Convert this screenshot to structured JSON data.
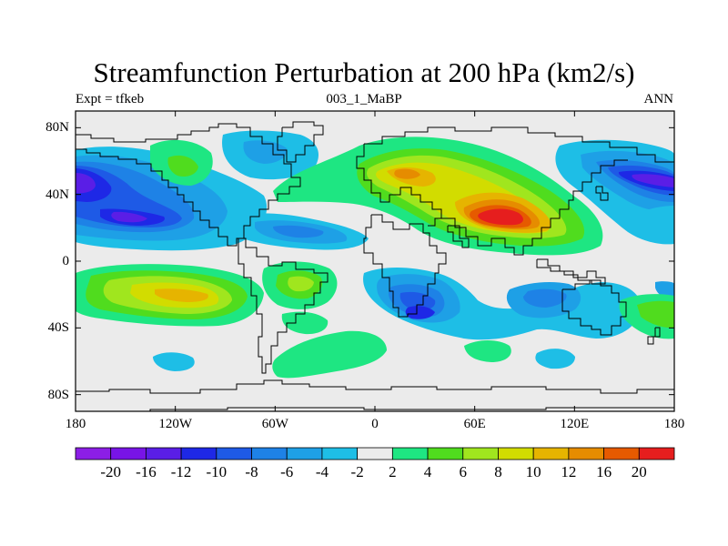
{
  "title": "Streamfunction Perturbation at 200 hPa (km2/s)",
  "subtitle_left": "Expt = tfkeb",
  "subtitle_center": "003_1_MaBP",
  "subtitle_right": "ANN",
  "map": {
    "projection": "cylindrical-equidistant",
    "lon_range": [
      -180,
      180
    ],
    "lat_range": [
      -90,
      90
    ],
    "background_color": "#ebebeb",
    "lat_ticks": [
      {
        "value": 80,
        "label": "80N"
      },
      {
        "value": 40,
        "label": "40N"
      },
      {
        "value": 0,
        "label": "0"
      },
      {
        "value": -40,
        "label": "40S"
      },
      {
        "value": -80,
        "label": "80S"
      }
    ],
    "lon_ticks": [
      {
        "value": -180,
        "label": "180"
      },
      {
        "value": -120,
        "label": "120W"
      },
      {
        "value": -60,
        "label": "60W"
      },
      {
        "value": 0,
        "label": "0"
      },
      {
        "value": 60,
        "label": "60E"
      },
      {
        "value": 120,
        "label": "120E"
      },
      {
        "value": 180,
        "label": "180"
      }
    ]
  },
  "colorbar": {
    "colors": [
      "#8c1ee6",
      "#7814e6",
      "#5a1ee6",
      "#1e28e6",
      "#1e5ae6",
      "#1e82e6",
      "#1ea0e6",
      "#1ebee6",
      "#ebebeb",
      "#1ee682",
      "#50dc1e",
      "#a0e61e",
      "#d2dc00",
      "#e6b400",
      "#e68c00",
      "#e65a00",
      "#e61e1e"
    ],
    "labels": [
      "-20",
      "-16",
      "-12",
      "-10",
      "-8",
      "-6",
      "-4",
      "-2",
      "2",
      "4",
      "6",
      "8",
      "10",
      "12",
      "16",
      "20"
    ]
  },
  "field_features": [
    {
      "lon": -165,
      "lat": 48,
      "value": -12
    },
    {
      "lon": -130,
      "lat": 26,
      "value": -12
    },
    {
      "lon": -75,
      "lat": 24,
      "value": -4
    },
    {
      "lon": -30,
      "lat": 20,
      "value": -6
    },
    {
      "lon": -20,
      "lat": 70,
      "value": -4
    },
    {
      "lon": -105,
      "lat": 55,
      "value": 4
    },
    {
      "lon": -28,
      "lat": 60,
      "value": 2
    },
    {
      "lon": 30,
      "lat": 55,
      "value": 8
    },
    {
      "lon": 40,
      "lat": 52,
      "value": 12
    },
    {
      "lon": 55,
      "lat": 30,
      "value": 4
    },
    {
      "lon": 90,
      "lat": 25,
      "value": 20
    },
    {
      "lon": 100,
      "lat": 30,
      "value": 12
    },
    {
      "lon": 140,
      "lat": 48,
      "value": -8
    },
    {
      "lon": 162,
      "lat": 48,
      "value": -16
    },
    {
      "lon": 178,
      "lat": 22,
      "value": -4
    },
    {
      "lon": -130,
      "lat": -18,
      "value": 10
    },
    {
      "lon": -150,
      "lat": -20,
      "value": 6
    },
    {
      "lon": -48,
      "lat": -8,
      "value": 6
    },
    {
      "lon": -45,
      "lat": -35,
      "value": 2
    },
    {
      "lon": -40,
      "lat": -60,
      "value": 4
    },
    {
      "lon": 50,
      "lat": -55,
      "value": 4
    },
    {
      "lon": 40,
      "lat": -28,
      "value": -8
    },
    {
      "lon": 20,
      "lat": -22,
      "value": -4
    },
    {
      "lon": 105,
      "lat": -15,
      "value": -6
    },
    {
      "lon": 150,
      "lat": -30,
      "value": -4
    },
    {
      "lon": 165,
      "lat": -30,
      "value": 6
    },
    {
      "lon": -120,
      "lat": -62,
      "value": -4
    },
    {
      "lon": -30,
      "lat": -75,
      "value": 2
    },
    {
      "lon": 20,
      "lat": -75,
      "value": -2
    }
  ]
}
